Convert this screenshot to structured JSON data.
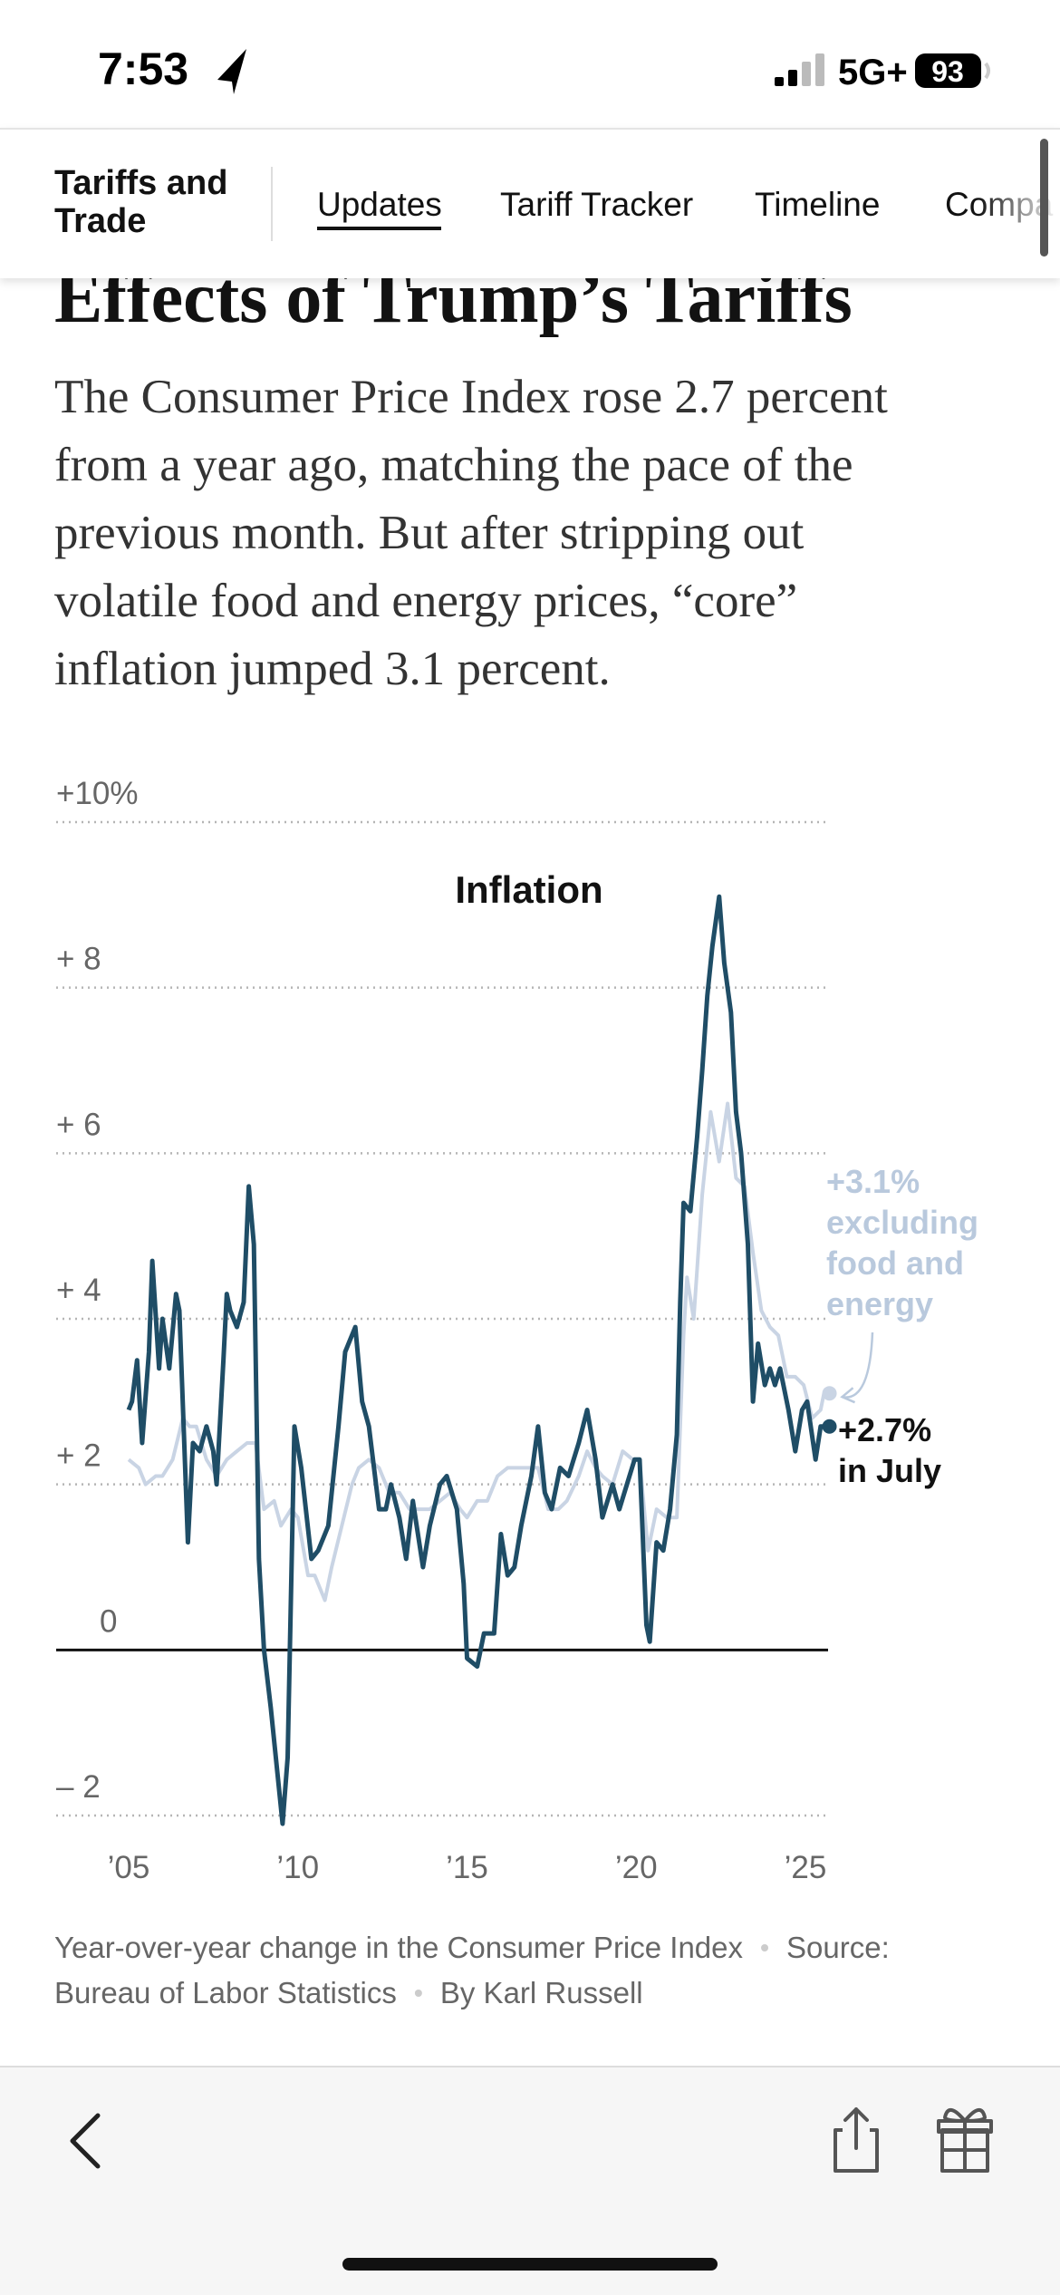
{
  "status_bar": {
    "time": "7:53",
    "network": "5G+",
    "battery": "93"
  },
  "nav": {
    "section": [
      "Tariffs and",
      "Trade"
    ],
    "tabs": [
      "Updates",
      "Tariff Tracker",
      "Timeline",
      "Compa"
    ]
  },
  "article": {
    "heading": "Effects of Trump’s Tariffs",
    "paragraph": [
      "The Consumer Price Index rose 2.7 percent",
      "from a year ago, matching the pace of the",
      "previous month. But after stripping out",
      "volatile food and energy prices, “core”",
      "inflation jumped 3.1 percent."
    ]
  },
  "chart_data": {
    "type": "line",
    "title": "Inflation",
    "xlim": [
      2005,
      2025.55
    ],
    "ylim": [
      -2,
      10
    ],
    "xticks": [
      {
        "value": 2005,
        "label": "’05"
      },
      {
        "value": 2010,
        "label": "’10"
      },
      {
        "value": 2015,
        "label": "’15"
      },
      {
        "value": 2020,
        "label": "’20"
      },
      {
        "value": 2025,
        "label": "’25"
      }
    ],
    "yticks": [
      {
        "value": 10,
        "label": "+10%"
      },
      {
        "value": 8,
        "label": "+ 8"
      },
      {
        "value": 6,
        "label": "+ 6"
      },
      {
        "value": 4,
        "label": "+ 4"
      },
      {
        "value": 2,
        "label": "+ 2"
      },
      0,
      {
        "value": -2,
        "label": "– 2"
      }
    ],
    "grid": true,
    "series": [
      {
        "color": "#c9d4e4",
        "x": [
          2005.0,
          2005.3,
          2005.5,
          2005.8,
          2006.0,
          2006.3,
          2006.6,
          2006.8,
          2007.0,
          2007.3,
          2007.6,
          2007.9,
          2008.2,
          2008.5,
          2008.75,
          2009.0,
          2009.3,
          2009.5,
          2009.8,
          2010.0,
          2010.3,
          2010.5,
          2010.8,
          2011.0,
          2011.3,
          2011.6,
          2011.8,
          2012.1,
          2012.4,
          2012.7,
          2013.0,
          2013.3,
          2013.6,
          2013.9,
          2014.2,
          2014.5,
          2014.8,
          2015.0,
          2015.3,
          2015.6,
          2015.9,
          2016.2,
          2016.5,
          2016.8,
          2017.1,
          2017.4,
          2017.7,
          2017.95,
          2018.3,
          2018.55,
          2018.8,
          2019.0,
          2019.3,
          2019.6,
          2019.9,
          2020.1,
          2020.35,
          2020.6,
          2020.9,
          2021.2,
          2021.4,
          2021.5,
          2021.7,
          2021.95,
          2022.2,
          2022.45,
          2022.7,
          2022.95,
          2023.2,
          2023.45,
          2023.7,
          2023.95,
          2024.2,
          2024.45,
          2024.7,
          2024.95,
          2025.2,
          2025.45,
          2025.55
        ],
        "values": [
          2.3,
          2.2,
          2.0,
          2.1,
          2.1,
          2.3,
          2.8,
          2.7,
          2.7,
          2.3,
          2.1,
          2.3,
          2.4,
          2.5,
          2.5,
          1.7,
          1.8,
          1.5,
          1.7,
          1.6,
          0.9,
          0.9,
          0.6,
          1.0,
          1.5,
          2.0,
          2.2,
          2.3,
          2.2,
          1.9,
          1.9,
          1.7,
          1.7,
          1.7,
          1.8,
          1.9,
          1.7,
          1.6,
          1.8,
          1.8,
          2.1,
          2.2,
          2.2,
          2.2,
          2.2,
          1.7,
          1.7,
          1.8,
          2.1,
          2.4,
          2.2,
          2.1,
          2.0,
          2.4,
          2.3,
          2.3,
          1.2,
          1.7,
          1.6,
          1.6,
          3.8,
          4.5,
          4.0,
          5.5,
          6.5,
          5.9,
          6.6,
          5.7,
          5.6,
          4.8,
          4.1,
          3.9,
          3.8,
          3.3,
          3.3,
          3.2,
          2.8,
          2.9,
          3.1
        ]
      },
      {
        "color": "#1f4d66",
        "x": [
          2005.0,
          2005.1,
          2005.25,
          2005.4,
          2005.6,
          2005.7,
          2005.9,
          2006.0,
          2006.2,
          2006.4,
          2006.5,
          2006.75,
          2006.9,
          2007.1,
          2007.3,
          2007.5,
          2007.6,
          2007.8,
          2007.9,
          2008.0,
          2008.2,
          2008.4,
          2008.55,
          2008.7,
          2008.85,
          2009.0,
          2009.2,
          2009.55,
          2009.7,
          2009.9,
          2010.1,
          2010.4,
          2010.6,
          2010.9,
          2011.2,
          2011.4,
          2011.7,
          2011.9,
          2012.1,
          2012.4,
          2012.6,
          2012.75,
          2013.0,
          2013.2,
          2013.4,
          2013.7,
          2013.9,
          2014.2,
          2014.4,
          2014.7,
          2014.9,
          2015.0,
          2015.3,
          2015.5,
          2015.8,
          2016.0,
          2016.2,
          2016.4,
          2016.6,
          2016.9,
          2017.1,
          2017.3,
          2017.5,
          2017.75,
          2018.0,
          2018.3,
          2018.55,
          2018.8,
          2019.0,
          2019.3,
          2019.5,
          2019.8,
          2019.95,
          2020.1,
          2020.3,
          2020.4,
          2020.6,
          2020.8,
          2021.0,
          2021.2,
          2021.3,
          2021.4,
          2021.6,
          2021.8,
          2021.95,
          2022.1,
          2022.25,
          2022.45,
          2022.6,
          2022.8,
          2022.95,
          2023.1,
          2023.3,
          2023.45,
          2023.6,
          2023.8,
          2023.95,
          2024.1,
          2024.25,
          2024.5,
          2024.7,
          2024.9,
          2025.05,
          2025.3,
          2025.45,
          2025.55
        ],
        "values": [
          2.9,
          3.0,
          3.5,
          2.5,
          3.6,
          4.7,
          3.4,
          4.0,
          3.4,
          4.3,
          4.1,
          1.3,
          2.5,
          2.4,
          2.7,
          2.4,
          2.0,
          3.5,
          4.3,
          4.1,
          3.9,
          4.2,
          5.6,
          4.9,
          1.1,
          0.0,
          -0.7,
          -2.1,
          -1.3,
          2.7,
          2.2,
          1.1,
          1.2,
          1.5,
          2.7,
          3.6,
          3.9,
          3.0,
          2.7,
          1.7,
          1.7,
          2.0,
          1.6,
          1.1,
          1.8,
          1.0,
          1.5,
          2.0,
          2.1,
          1.7,
          0.8,
          -0.1,
          -0.2,
          0.2,
          0.2,
          1.4,
          0.9,
          1.0,
          1.5,
          2.1,
          2.7,
          1.9,
          1.7,
          2.2,
          2.1,
          2.5,
          2.9,
          2.3,
          1.6,
          2.0,
          1.7,
          2.1,
          2.3,
          2.3,
          0.3,
          0.1,
          1.3,
          1.2,
          1.7,
          2.6,
          4.2,
          5.4,
          5.3,
          6.2,
          7.0,
          7.9,
          8.5,
          9.1,
          8.3,
          7.7,
          6.5,
          6.0,
          4.9,
          3.0,
          3.7,
          3.2,
          3.4,
          3.2,
          3.4,
          2.9,
          2.4,
          2.9,
          3.0,
          2.3,
          2.7,
          2.7
        ]
      }
    ],
    "annotations": [
      {
        "lines": [
          "+3.1%",
          "excluding",
          "food and",
          "energy"
        ],
        "color": "#b9c9dd"
      },
      {
        "lines": [
          "+2.7%",
          "in July"
        ],
        "color": "#111111"
      }
    ],
    "caption": [
      "Year-over-year change in the Consumer Price Index",
      "Source:",
      "Bureau of Labor Statistics",
      "By Karl Russell"
    ]
  }
}
